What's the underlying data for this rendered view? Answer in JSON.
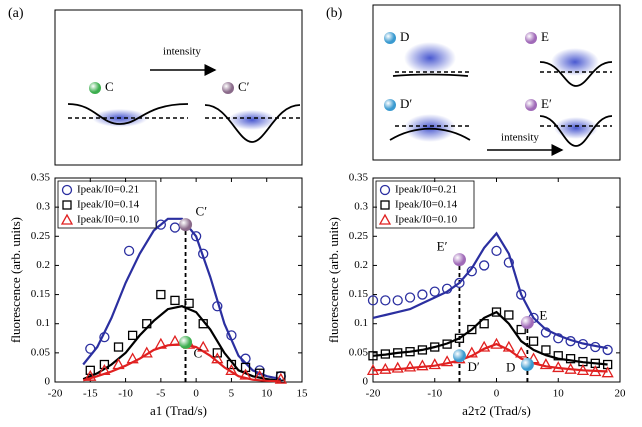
{
  "chart_data": [
    {
      "type": "scatter",
      "label": "(a)",
      "x_label": "a1 (Trad/s)",
      "y_label": "fluorescence (arb. units)",
      "xlim": [
        -20,
        15
      ],
      "xticks": [
        -20,
        -15,
        -10,
        -5,
        0,
        5,
        10,
        15
      ],
      "ylim": [
        0,
        0.35
      ],
      "yticks": [
        0,
        0.05,
        0.1,
        0.15,
        0.2,
        0.25,
        0.3,
        0.35
      ],
      "legend": "upper left",
      "schematic": [
        "C",
        "C′",
        "intensity"
      ],
      "series": [
        {
          "name": "Ipeak/I0=0.21",
          "color": "#2b2fa0",
          "marker": "circle",
          "x": [
            -15,
            -13,
            -9.5,
            -5,
            -3,
            0,
            1,
            3,
            5,
            7,
            9,
            12
          ],
          "values": [
            0.057,
            0.077,
            0.225,
            0.27,
            0.265,
            0.25,
            0.22,
            0.13,
            0.08,
            0.04,
            0.02,
            0.01
          ],
          "fit": {
            "x": [
              -16,
              -14,
              -12,
              -10,
              -8,
              -6,
              -4,
              -2,
              0,
              2,
              4,
              6,
              8,
              10,
              12
            ],
            "values": [
              0.03,
              0.06,
              0.11,
              0.17,
              0.22,
              0.26,
              0.28,
              0.28,
              0.25,
              0.18,
              0.1,
              0.045,
              0.02,
              0.01,
              0.005
            ]
          }
        },
        {
          "name": "Ipeak/I0=0.14",
          "color": "#000000",
          "marker": "square",
          "x": [
            -15,
            -13,
            -11,
            -9,
            -7,
            -5,
            -3,
            -1,
            1,
            3,
            5,
            7,
            9,
            12
          ],
          "values": [
            0.02,
            0.03,
            0.06,
            0.08,
            0.1,
            0.15,
            0.14,
            0.135,
            0.1,
            0.05,
            0.03,
            0.025,
            0.015,
            0.01
          ],
          "fit": {
            "x": [
              -16,
              -14,
              -12,
              -10,
              -8,
              -6,
              -4,
              -2,
              0,
              2,
              4,
              6,
              8,
              10,
              12
            ],
            "values": [
              0.005,
              0.015,
              0.03,
              0.05,
              0.08,
              0.105,
              0.125,
              0.13,
              0.12,
              0.09,
              0.05,
              0.02,
              0.01,
              0.005,
              0.002
            ]
          }
        },
        {
          "name": "Ipeak/I0=0.10",
          "color": "#e02020",
          "marker": "triangle",
          "x": [
            -15,
            -13,
            -11,
            -9,
            -7,
            -5,
            -3,
            -1,
            1,
            3,
            5,
            7,
            9,
            12
          ],
          "values": [
            0.01,
            0.02,
            0.03,
            0.04,
            0.05,
            0.065,
            0.07,
            0.065,
            0.06,
            0.04,
            0.02,
            0.012,
            0.01,
            0.005
          ],
          "fit": {
            "x": [
              -16,
              -14,
              -12,
              -10,
              -8,
              -6,
              -4,
              -2,
              0,
              2,
              4,
              6,
              8,
              10,
              12
            ],
            "values": [
              0.003,
              0.01,
              0.018,
              0.028,
              0.04,
              0.055,
              0.063,
              0.065,
              0.06,
              0.045,
              0.025,
              0.01,
              0.004,
              0.002,
              0.001
            ]
          }
        }
      ],
      "points": [
        {
          "label": "C′",
          "x": -1.5,
          "y": 0.27,
          "color": "#8a6a8a"
        },
        {
          "label": "C",
          "x": -1.5,
          "y": 0.068,
          "color": "#3cae4e"
        }
      ]
    },
    {
      "type": "scatter",
      "label": "(b)",
      "x_label": "a2τ2 (Trad/s)",
      "y_label": "fluorescence (arb. units)",
      "xlim": [
        -20,
        20
      ],
      "xticks": [
        -20,
        -10,
        0,
        10,
        20
      ],
      "ylim": [
        0,
        0.35
      ],
      "yticks": [
        0,
        0.05,
        0.1,
        0.15,
        0.2,
        0.25,
        0.3,
        0.35
      ],
      "legend": "upper right",
      "schematic": [
        "D",
        "E",
        "D′",
        "E′",
        "intensity"
      ],
      "series": [
        {
          "name": "Ipeak/I0=0.21",
          "color": "#2b2fa0",
          "marker": "circle",
          "x": [
            -20,
            -18,
            -16,
            -14,
            -12,
            -10,
            -8,
            -6,
            -4,
            -2,
            0,
            2,
            4,
            6,
            8,
            10,
            12,
            14,
            16,
            18
          ],
          "values": [
            0.14,
            0.14,
            0.14,
            0.145,
            0.15,
            0.155,
            0.16,
            0.17,
            0.19,
            0.2,
            0.225,
            0.205,
            0.15,
            0.11,
            0.085,
            0.075,
            0.07,
            0.065,
            0.06,
            0.055
          ],
          "fit": {
            "x": [
              -20,
              -18,
              -16,
              -14,
              -12,
              -10,
              -8,
              -6,
              -4,
              -2,
              0,
              2,
              4,
              6,
              8,
              10,
              12,
              14,
              16,
              18
            ],
            "values": [
              0.11,
              0.115,
              0.12,
              0.125,
              0.135,
              0.145,
              0.155,
              0.17,
              0.195,
              0.23,
              0.255,
              0.22,
              0.15,
              0.11,
              0.09,
              0.08,
              0.072,
              0.066,
              0.062,
              0.058
            ]
          }
        },
        {
          "name": "Ipeak/I0=0.14",
          "color": "#000000",
          "marker": "square",
          "x": [
            -20,
            -18,
            -16,
            -14,
            -12,
            -10,
            -8,
            -6,
            -4,
            -2,
            0,
            2,
            4,
            6,
            8,
            10,
            12,
            14,
            16,
            18
          ],
          "values": [
            0.045,
            0.048,
            0.05,
            0.052,
            0.055,
            0.06,
            0.065,
            0.075,
            0.09,
            0.1,
            0.12,
            0.115,
            0.09,
            0.07,
            0.055,
            0.045,
            0.04,
            0.035,
            0.032,
            0.03
          ],
          "fit": {
            "x": [
              -20,
              -18,
              -16,
              -14,
              -12,
              -10,
              -8,
              -6,
              -4,
              -2,
              0,
              2,
              4,
              6,
              8,
              10,
              12,
              14,
              16,
              18
            ],
            "values": [
              0.045,
              0.047,
              0.05,
              0.052,
              0.055,
              0.06,
              0.066,
              0.075,
              0.09,
              0.11,
              0.12,
              0.1,
              0.07,
              0.055,
              0.046,
              0.04,
              0.037,
              0.034,
              0.032,
              0.03
            ]
          }
        },
        {
          "name": "Ipeak/I0=0.10",
          "color": "#e02020",
          "marker": "triangle",
          "x": [
            -20,
            -18,
            -16,
            -14,
            -12,
            -10,
            -8,
            -6,
            -4,
            -2,
            0,
            2,
            4,
            6,
            8,
            10,
            12,
            14,
            16,
            18
          ],
          "values": [
            0.02,
            0.022,
            0.024,
            0.026,
            0.028,
            0.03,
            0.035,
            0.04,
            0.05,
            0.06,
            0.065,
            0.06,
            0.05,
            0.04,
            0.03,
            0.025,
            0.022,
            0.02,
            0.018,
            0.016
          ],
          "fit": {
            "x": [
              -20,
              -18,
              -16,
              -14,
              -12,
              -10,
              -8,
              -6,
              -4,
              -2,
              0,
              2,
              4,
              6,
              8,
              10,
              12,
              14,
              16,
              18
            ],
            "values": [
              0.02,
              0.021,
              0.022,
              0.024,
              0.026,
              0.028,
              0.032,
              0.037,
              0.045,
              0.057,
              0.065,
              0.055,
              0.04,
              0.032,
              0.027,
              0.024,
              0.022,
              0.02,
              0.019,
              0.018
            ]
          }
        }
      ],
      "points": [
        {
          "label": "E′",
          "x": -6,
          "y": 0.21,
          "color": "#a06ab8"
        },
        {
          "label": "E",
          "x": 5,
          "y": 0.102,
          "color": "#a06ab8"
        },
        {
          "label": "D′",
          "x": -6,
          "y": 0.045,
          "color": "#3a9ad0"
        },
        {
          "label": "D",
          "x": 5,
          "y": 0.03,
          "color": "#3a9ad0"
        }
      ]
    }
  ]
}
